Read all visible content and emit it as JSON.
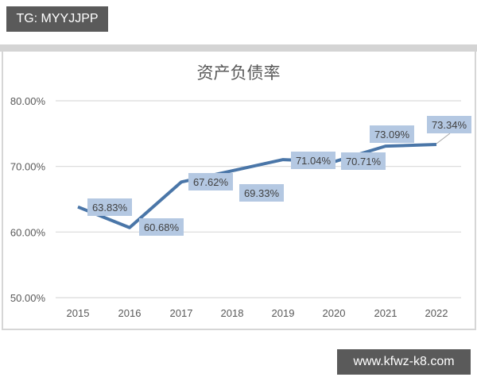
{
  "watermarks": {
    "top_left": "TG: MYYJJPP",
    "bottom_right": "www.kfwz-k8.com"
  },
  "chart_data": {
    "type": "line",
    "title": "资产负债率",
    "xlabel": "",
    "ylabel": "",
    "categories": [
      "2015",
      "2016",
      "2017",
      "2018",
      "2019",
      "2020",
      "2021",
      "2022"
    ],
    "series": [
      {
        "name": "资产负债率",
        "values": [
          63.83,
          60.68,
          67.62,
          69.33,
          71.04,
          70.71,
          73.09,
          73.34
        ],
        "labels": [
          "63.83%",
          "60.68%",
          "67.62%",
          "69.33%",
          "71.04%",
          "70.71%",
          "73.09%",
          "73.34%"
        ],
        "color": "#4a76a8"
      }
    ],
    "yticks": [
      "80.00%",
      "70.00%",
      "60.00%",
      "50.00%"
    ],
    "ylim": [
      50,
      80
    ],
    "grid": true,
    "legend": "none",
    "label_box_color": "#b4c8e2"
  }
}
